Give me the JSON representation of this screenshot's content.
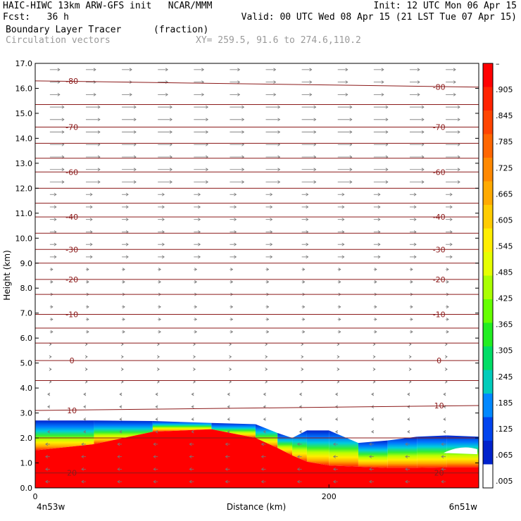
{
  "header": {
    "line1_left": "HAIC-HIWC 13km ARW-GFS init   NCAR/MMM",
    "line1_right": "Init: 12 UTC Mon 06 Apr 15",
    "line2_fcst": "Fcst:   36 h",
    "line2_valid": "Valid: 00 UTC Wed 08 Apr 15 (21 LST Tue 07 Apr 15)",
    "line3_field": "Boundary Layer Tracer",
    "line3_units": "(fraction)",
    "line4_field": "Circulation vectors",
    "line4_xy": "XY= 259.5, 91.6 to 274.6,110.2"
  },
  "chart_data": {
    "type": "heatmap",
    "xlabel": "Distance (km)",
    "ylabel": "Height (km)",
    "xlim": [
      0,
      302
    ],
    "ylim": [
      0,
      17
    ],
    "y_ticks": [
      "0.0",
      "1.0",
      "2.0",
      "3.0",
      "4.0",
      "5.0",
      "6.0",
      "7.0",
      "8.0",
      "9.0",
      "10.0",
      "11.0",
      "12.0",
      "13.0",
      "14.0",
      "15.0",
      "16.0",
      "17.0"
    ],
    "x_ticks": [
      {
        "value": 0,
        "label": "0"
      },
      {
        "value": 200,
        "label": "200"
      }
    ],
    "x_end_labels": {
      "left": "4n53w",
      "right": "6n51w"
    },
    "colorbar": {
      "labels": [
        "–",
        ".905",
        ".845",
        ".785",
        ".725",
        ".665",
        ".605",
        ".545",
        ".485",
        ".425",
        ".365",
        ".305",
        ".245",
        ".185",
        ".125",
        ".065",
        ".005"
      ],
      "colors": [
        "#ff0000",
        "#ff2200",
        "#ff4400",
        "#ff6600",
        "#ff8800",
        "#ffaa00",
        "#ffcc00",
        "#ffee00",
        "#e6ff00",
        "#aaff00",
        "#66ff00",
        "#22ee22",
        "#00dd66",
        "#00ccbb",
        "#0088ff",
        "#0044ee",
        "#0022cc",
        "#ffffff"
      ]
    },
    "tracer_profile": {
      "x": [
        0,
        40,
        80,
        120,
        150,
        165,
        175,
        185,
        200,
        220,
        240,
        260,
        280,
        302
      ],
      "top": [
        2.7,
        2.7,
        2.68,
        2.6,
        2.55,
        2.2,
        2.0,
        2.3,
        2.3,
        1.8,
        1.9,
        2.05,
        2.1,
        2.05
      ],
      "red_top": [
        1.5,
        1.75,
        2.25,
        2.35,
        2.0,
        1.6,
        1.3,
        1.05,
        0.9,
        0.85,
        0.8,
        0.8,
        0.82,
        0.82
      ]
    },
    "temperature_contours": [
      {
        "level": "-80",
        "y_left": 16.3,
        "y_right": 16.05
      },
      {
        "level": "-70",
        "y_left": 14.45,
        "y_right": 14.45
      },
      {
        "level": "-60",
        "y_left": 12.65,
        "y_right": 12.65
      },
      {
        "level": "-40",
        "y_left": 10.85,
        "y_right": 10.85
      },
      {
        "level": "-30",
        "y_left": 9.55,
        "y_right": 9.55
      },
      {
        "level": "-20",
        "y_left": 8.35,
        "y_right": 8.35
      },
      {
        "level": "-10",
        "y_left": 6.95,
        "y_right": 6.95
      },
      {
        "level": "0",
        "y_left": 5.1,
        "y_right": 5.1
      },
      {
        "level": "10",
        "y_left": 3.1,
        "y_right": 3.3
      },
      {
        "level": "20",
        "y_left": 0.6,
        "y_right": 0.6
      }
    ]
  }
}
